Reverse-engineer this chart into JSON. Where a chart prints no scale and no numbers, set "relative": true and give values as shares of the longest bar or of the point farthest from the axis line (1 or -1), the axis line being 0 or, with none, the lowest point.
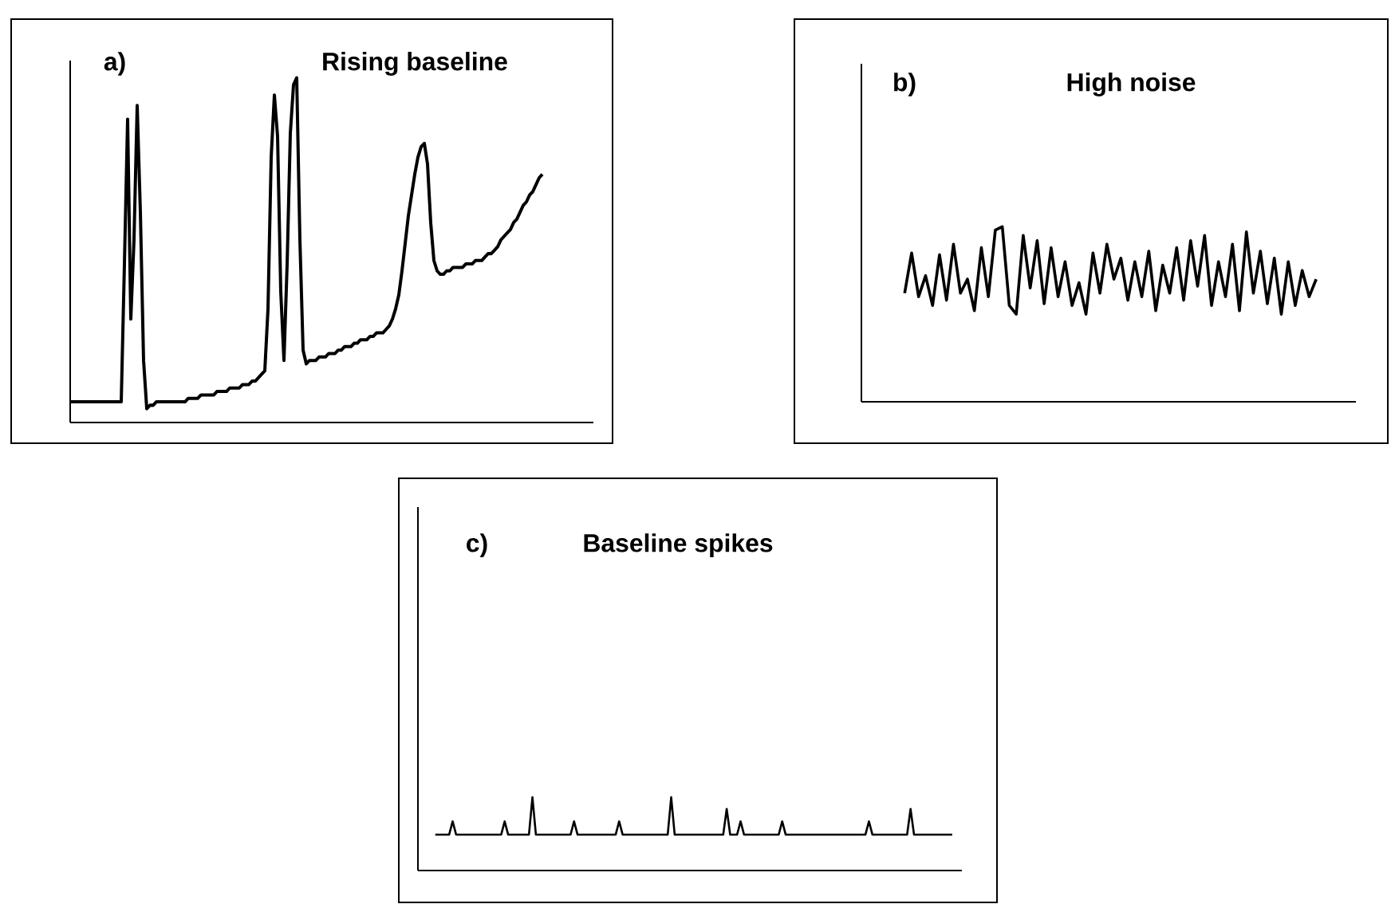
{
  "chart_data": [
    {
      "type": "line",
      "title": "Rising baseline",
      "annotations": [
        "a)"
      ],
      "relative": true,
      "color": "#000000",
      "categories": [
        null,
        null,
        null,
        null,
        null,
        null,
        null,
        null,
        null,
        null,
        null,
        null,
        null,
        null,
        null,
        null,
        null,
        null,
        null,
        null,
        null,
        null,
        null,
        null,
        null,
        null,
        null,
        null,
        null,
        null,
        null,
        null,
        null,
        null,
        null,
        null,
        null,
        null,
        null,
        null,
        null,
        null,
        null,
        null,
        null,
        null,
        null,
        null,
        null,
        null,
        null,
        null,
        null,
        null,
        null,
        null,
        null,
        null,
        null,
        null,
        null,
        null,
        null,
        null,
        null,
        null,
        null,
        null,
        null,
        null,
        null,
        null,
        null,
        null,
        null,
        null,
        null,
        null,
        null,
        null,
        null,
        null,
        null,
        null,
        null,
        null,
        null,
        null,
        null,
        null,
        null,
        null,
        null,
        null,
        null,
        null,
        null,
        null,
        null,
        null,
        null,
        null,
        null,
        null,
        null,
        null,
        null,
        null,
        null,
        null,
        null,
        null,
        null,
        null,
        null,
        null,
        null,
        null,
        null,
        null,
        null,
        null,
        null,
        null,
        null,
        null,
        null,
        null,
        null,
        null,
        null,
        null,
        null,
        null,
        null,
        null,
        null,
        null,
        null,
        null,
        null,
        null,
        null,
        null,
        null,
        null,
        null,
        null,
        null
      ],
      "values": [
        0.06,
        0.06,
        0.06,
        0.06,
        0.06,
        0.06,
        0.06,
        0.06,
        0.06,
        0.06,
        0.06,
        0.06,
        0.06,
        0.06,
        0.06,
        0.06,
        0.06,
        0.46,
        0.88,
        0.3,
        0.53,
        0.92,
        0.61,
        0.18,
        0.04,
        0.05,
        0.05,
        0.06,
        0.06,
        0.06,
        0.06,
        0.06,
        0.06,
        0.06,
        0.06,
        0.06,
        0.06,
        0.07,
        0.07,
        0.07,
        0.07,
        0.08,
        0.08,
        0.08,
        0.08,
        0.08,
        0.09,
        0.09,
        0.09,
        0.09,
        0.1,
        0.1,
        0.1,
        0.1,
        0.11,
        0.11,
        0.11,
        0.12,
        0.12,
        0.13,
        0.14,
        0.15,
        0.33,
        0.77,
        0.95,
        0.83,
        0.38,
        0.18,
        0.46,
        0.84,
        0.98,
        1.0,
        0.53,
        0.21,
        0.17,
        0.18,
        0.18,
        0.18,
        0.19,
        0.19,
        0.19,
        0.2,
        0.2,
        0.2,
        0.21,
        0.21,
        0.22,
        0.22,
        0.22,
        0.23,
        0.23,
        0.24,
        0.24,
        0.24,
        0.25,
        0.25,
        0.26,
        0.26,
        0.26,
        0.27,
        0.28,
        0.3,
        0.33,
        0.37,
        0.44,
        0.52,
        0.6,
        0.66,
        0.72,
        0.77,
        0.8,
        0.81,
        0.75,
        0.58,
        0.47,
        0.44,
        0.43,
        0.43,
        0.44,
        0.44,
        0.45,
        0.45,
        0.45,
        0.45,
        0.46,
        0.46,
        0.46,
        0.47,
        0.47,
        0.47,
        0.48,
        0.49,
        0.49,
        0.5,
        0.51,
        0.53,
        0.54,
        0.55,
        0.56,
        0.58,
        0.59,
        0.61,
        0.63,
        0.64,
        0.66,
        0.67,
        0.69,
        0.71,
        0.72
      ]
    },
    {
      "type": "line",
      "title": "High noise",
      "annotations": [
        "b)"
      ],
      "relative": true,
      "color": "#000000",
      "categories": [
        null,
        null,
        null,
        null,
        null,
        null,
        null,
        null,
        null,
        null,
        null,
        null,
        null,
        null,
        null,
        null,
        null,
        null,
        null,
        null,
        null,
        null,
        null,
        null,
        null,
        null,
        null,
        null,
        null,
        null,
        null,
        null,
        null,
        null,
        null,
        null,
        null,
        null,
        null,
        null,
        null,
        null,
        null,
        null,
        null,
        null,
        null,
        null,
        null,
        null,
        null,
        null,
        null,
        null,
        null,
        null,
        null,
        null,
        null,
        null
      ],
      "values": [
        0.62,
        0.85,
        0.6,
        0.72,
        0.55,
        0.84,
        0.58,
        0.9,
        0.62,
        0.7,
        0.52,
        0.88,
        0.6,
        0.98,
        1.0,
        0.55,
        0.5,
        0.95,
        0.65,
        0.92,
        0.56,
        0.88,
        0.6,
        0.8,
        0.55,
        0.68,
        0.5,
        0.85,
        0.62,
        0.9,
        0.7,
        0.82,
        0.58,
        0.8,
        0.6,
        0.86,
        0.52,
        0.78,
        0.62,
        0.88,
        0.58,
        0.92,
        0.66,
        0.95,
        0.55,
        0.8,
        0.6,
        0.9,
        0.52,
        0.97,
        0.62,
        0.86,
        0.56,
        0.82,
        0.5,
        0.8,
        0.55,
        0.75,
        0.6,
        0.7
      ]
    },
    {
      "type": "line",
      "title": "Baseline spikes",
      "annotations": [
        "c)"
      ],
      "relative": true,
      "color": "#000000",
      "categories": [
        null,
        null,
        null,
        null,
        null,
        null,
        null,
        null,
        null,
        null,
        null,
        null,
        null,
        null,
        null,
        null,
        null,
        null,
        null,
        null,
        null,
        null,
        null,
        null,
        null,
        null,
        null,
        null,
        null,
        null,
        null,
        null,
        null,
        null,
        null,
        null,
        null,
        null,
        null,
        null,
        null,
        null,
        null,
        null,
        null,
        null,
        null,
        null,
        null,
        null,
        null,
        null,
        null,
        null,
        null,
        null,
        null,
        null,
        null,
        null,
        null,
        null,
        null,
        null,
        null,
        null,
        null,
        null,
        null,
        null,
        null,
        null,
        null,
        null,
        null,
        null,
        null,
        null,
        null,
        null,
        null,
        null,
        null,
        null,
        null,
        null,
        null,
        null,
        null,
        null,
        null,
        null,
        null,
        null,
        null,
        null,
        null,
        null,
        null,
        null,
        null,
        null,
        null,
        null,
        null,
        null,
        null,
        null,
        null,
        null,
        null,
        null,
        null,
        null,
        null,
        null,
        null,
        null,
        null,
        null,
        null,
        null,
        null,
        null,
        null,
        null,
        null,
        null,
        null,
        null,
        null,
        null,
        null,
        null,
        null,
        null,
        null,
        null,
        null,
        null,
        null,
        null,
        null,
        null,
        null,
        null,
        null,
        null,
        null,
        null
      ],
      "values": [
        0.49,
        0.49,
        0.49,
        0.49,
        0.49,
        0.67,
        0.49,
        0.49,
        0.49,
        0.49,
        0.49,
        0.49,
        0.49,
        0.49,
        0.49,
        0.49,
        0.49,
        0.49,
        0.49,
        0.49,
        0.67,
        0.49,
        0.49,
        0.49,
        0.49,
        0.49,
        0.49,
        0.49,
        1.0,
        0.49,
        0.49,
        0.49,
        0.49,
        0.49,
        0.49,
        0.49,
        0.49,
        0.49,
        0.49,
        0.49,
        0.67,
        0.49,
        0.49,
        0.49,
        0.49,
        0.49,
        0.49,
        0.49,
        0.49,
        0.49,
        0.49,
        0.49,
        0.49,
        0.67,
        0.49,
        0.49,
        0.49,
        0.49,
        0.49,
        0.49,
        0.49,
        0.49,
        0.49,
        0.49,
        0.49,
        0.49,
        0.49,
        0.49,
        1.0,
        0.49,
        0.49,
        0.49,
        0.49,
        0.49,
        0.49,
        0.49,
        0.49,
        0.49,
        0.49,
        0.49,
        0.49,
        0.49,
        0.49,
        0.49,
        0.84,
        0.49,
        0.49,
        0.49,
        0.67,
        0.49,
        0.49,
        0.49,
        0.49,
        0.49,
        0.49,
        0.49,
        0.49,
        0.49,
        0.49,
        0.49,
        0.67,
        0.49,
        0.49,
        0.49,
        0.49,
        0.49,
        0.49,
        0.49,
        0.49,
        0.49,
        0.49,
        0.49,
        0.49,
        0.49,
        0.49,
        0.49,
        0.49,
        0.49,
        0.49,
        0.49,
        0.49,
        0.49,
        0.49,
        0.49,
        0.49,
        0.67,
        0.49,
        0.49,
        0.49,
        0.49,
        0.49,
        0.49,
        0.49,
        0.49,
        0.49,
        0.49,
        0.49,
        0.84,
        0.49,
        0.49,
        0.49,
        0.49,
        0.49,
        0.49,
        0.49,
        0.49,
        0.49,
        0.49,
        0.49,
        0.49
      ]
    }
  ]
}
